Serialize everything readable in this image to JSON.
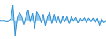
{
  "chart_data": {
    "type": "area",
    "x": [
      0,
      1,
      2,
      3,
      4,
      5,
      6,
      7,
      8,
      9,
      10,
      11,
      12,
      13,
      14,
      15,
      16,
      17,
      18,
      19,
      20,
      21,
      22,
      23,
      24,
      25,
      26,
      27,
      28,
      29,
      30,
      31,
      32,
      33,
      34,
      35,
      36,
      37,
      38,
      39,
      40,
      41,
      42,
      43,
      44,
      45,
      46,
      47,
      48,
      49
    ],
    "values": [
      -0.3,
      -0.3,
      -0.3,
      -0.5,
      -0.4,
      0.2,
      4.0,
      -4.5,
      0.5,
      2.0,
      1.0,
      -1.5,
      0.8,
      2.8,
      -0.5,
      1.8,
      -2.5,
      2.2,
      1.2,
      -0.8,
      1.5,
      -1.8,
      1.0,
      2.0,
      -1.2,
      1.5,
      -0.8,
      0.8,
      -1.2,
      1.0,
      -0.5,
      0.8,
      -1.2,
      0.8,
      -0.4,
      0.6,
      -1.0,
      0.5,
      -0.4,
      0.5,
      -0.8,
      0.4,
      -0.5,
      0.4,
      -0.8,
      0.3,
      -1.8,
      0.2,
      -0.8,
      -0.3
    ],
    "baseline": -0.3,
    "color": "#2b8fd4",
    "fill_color": "#90c8ec",
    "xlim": [
      0,
      49
    ],
    "ylim": [
      -5.5,
      5.5
    ],
    "grid": false,
    "tick_labels": false
  }
}
